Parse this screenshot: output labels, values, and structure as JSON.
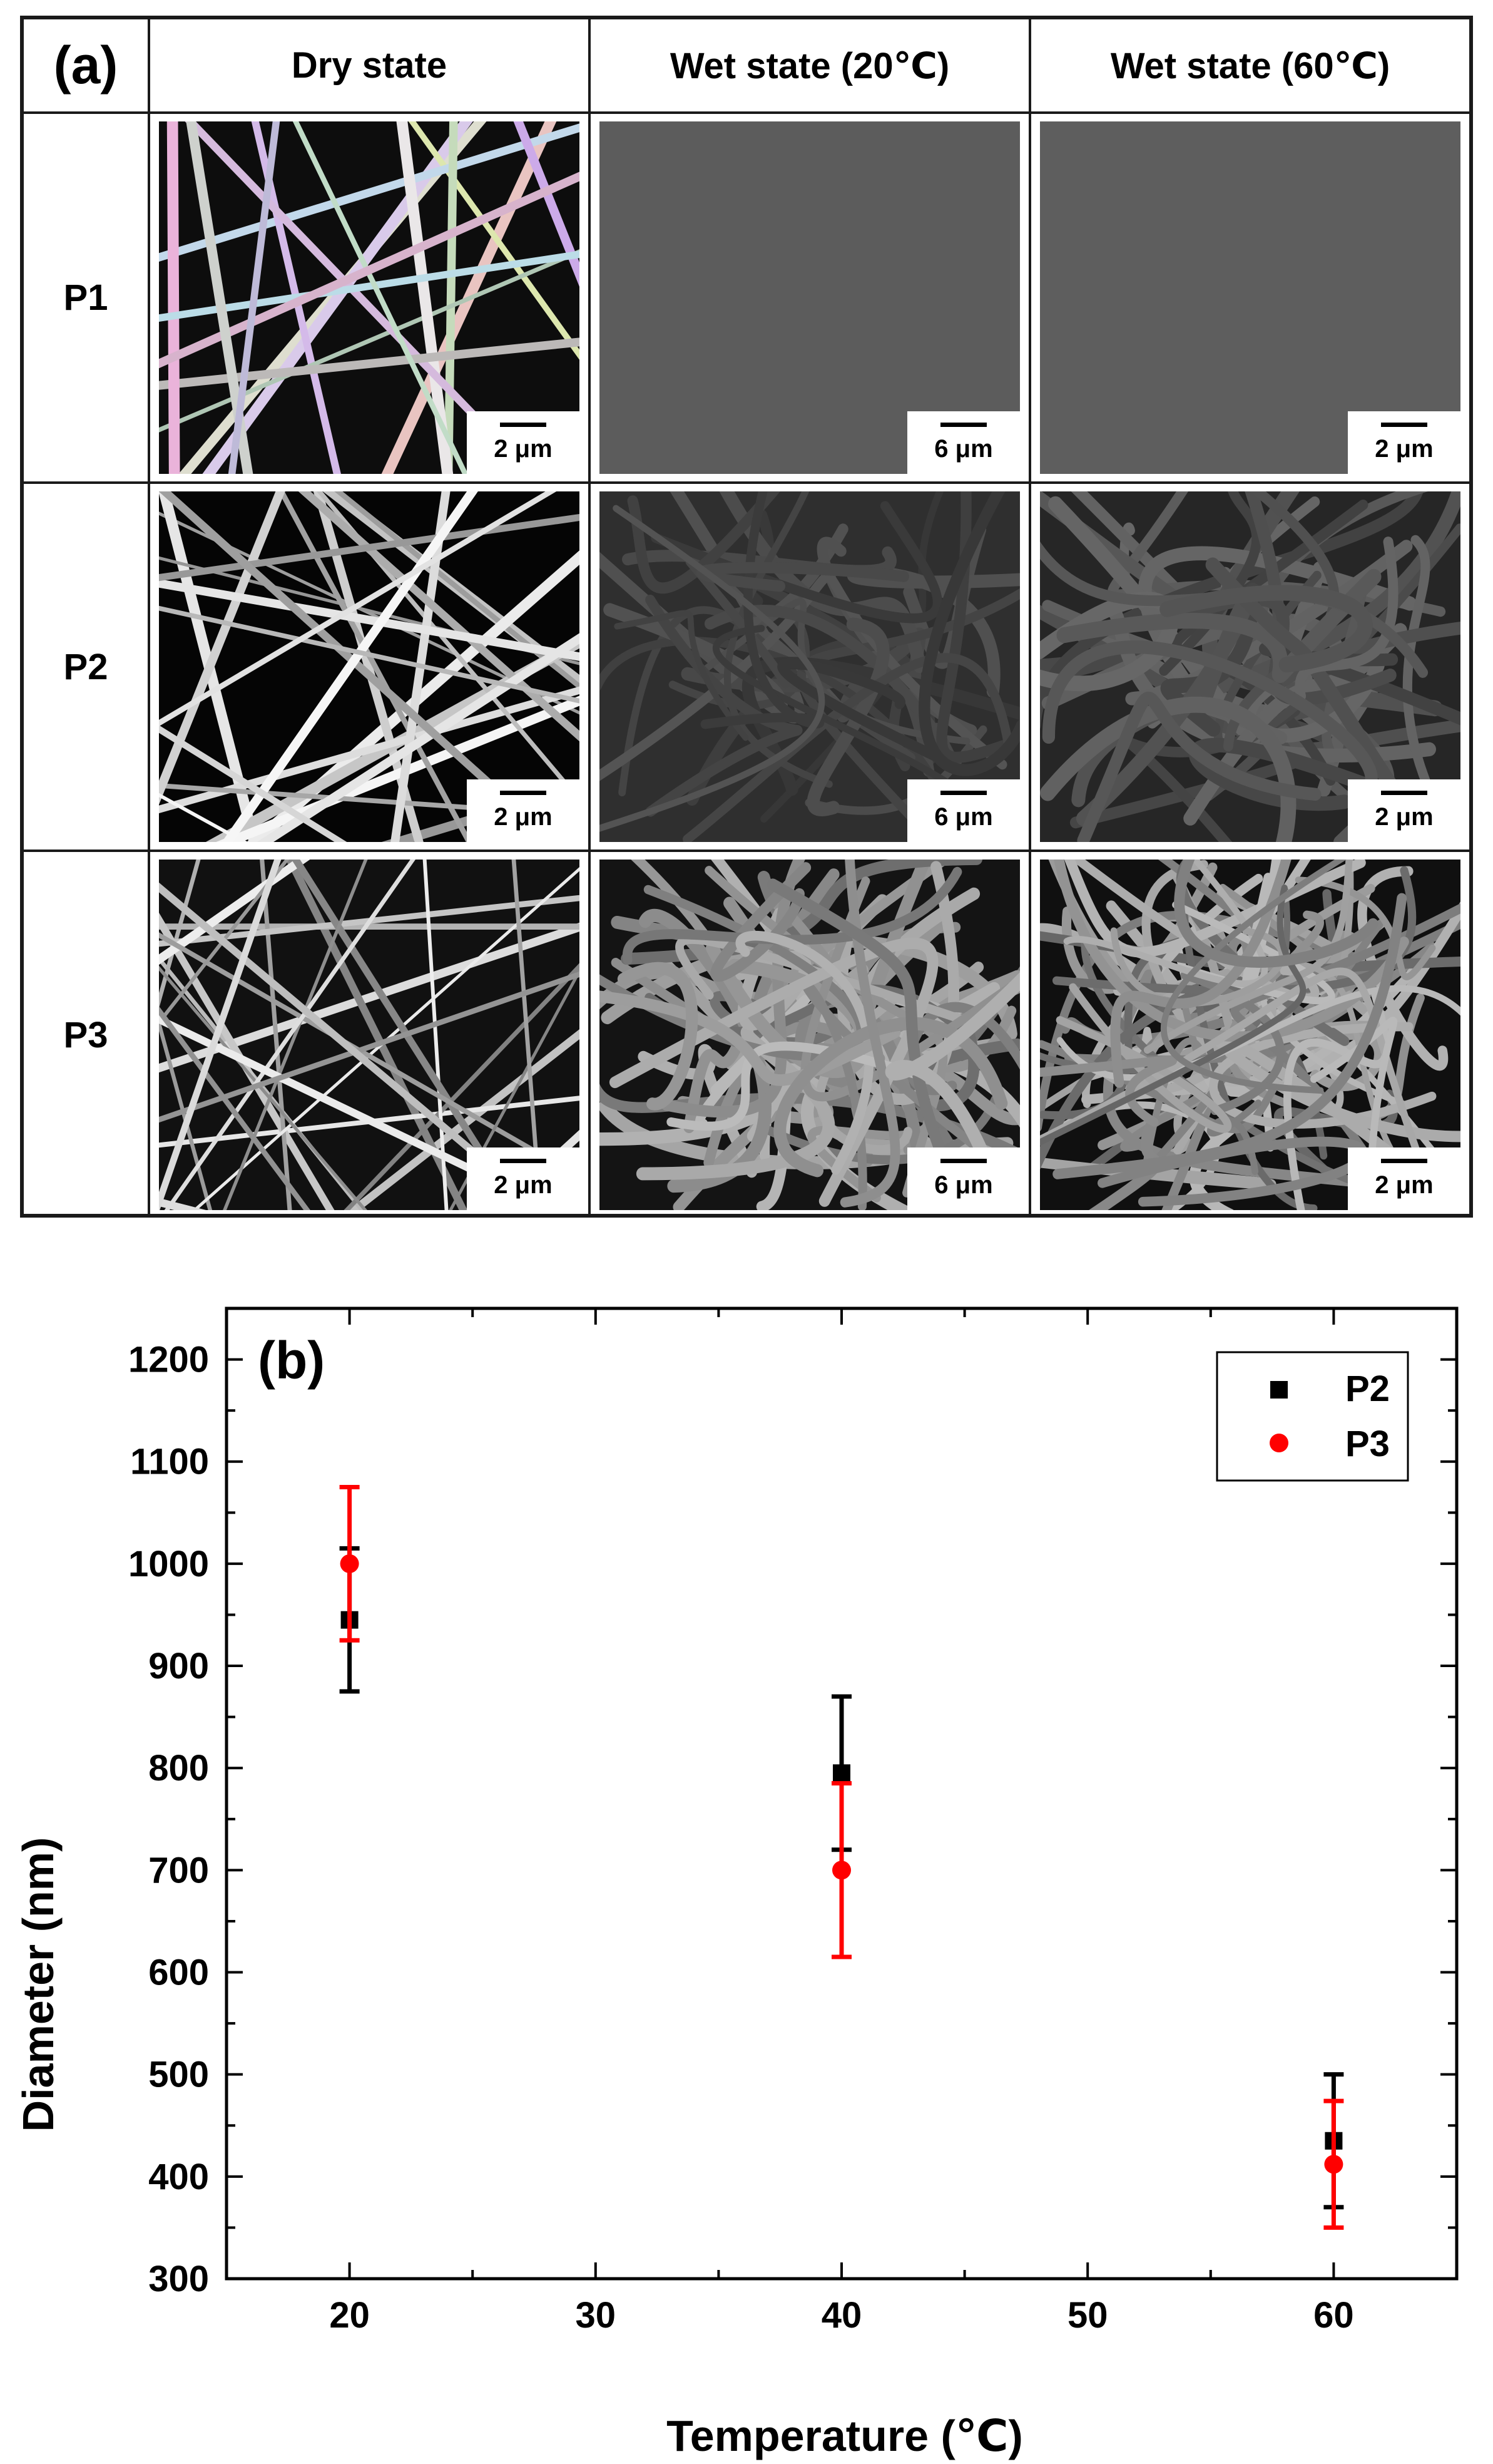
{
  "panel_a": {
    "label": "(a)",
    "columns": [
      "Dry  state",
      "Wet state (20℃)",
      "Wet state (60℃)"
    ],
    "rows": [
      {
        "label": "P1",
        "scalebars": [
          "2 μm",
          "6 μm",
          "2 μm"
        ]
      },
      {
        "label": "P2",
        "scalebars": [
          "2 μm",
          "6 μm",
          "2 μm"
        ]
      },
      {
        "label": "P3",
        "scalebars": [
          "2 μm",
          "6 μm",
          "2 μm"
        ]
      }
    ]
  },
  "chart_data": {
    "type": "scatter",
    "panel_label": "(b)",
    "xlabel": "Temperature  (℃)",
    "ylabel": "Diameter (nm)",
    "xlim": [
      15,
      65
    ],
    "ylim": [
      300,
      1250
    ],
    "xticks": [
      20,
      30,
      40,
      50,
      60
    ],
    "yticks": [
      300,
      400,
      500,
      600,
      700,
      800,
      900,
      1000,
      1100,
      1200
    ],
    "legend_position": "top-right",
    "grid": false,
    "series": [
      {
        "name": "P2",
        "marker": "square",
        "color": "#000000",
        "x": [
          20,
          40,
          60
        ],
        "y": [
          945,
          795,
          435
        ],
        "err": [
          70,
          75,
          65
        ]
      },
      {
        "name": "P3",
        "marker": "circle",
        "color": "#ff0000",
        "x": [
          20,
          40,
          60
        ],
        "y": [
          1000,
          700,
          412
        ],
        "err": [
          75,
          85,
          62
        ]
      }
    ]
  }
}
